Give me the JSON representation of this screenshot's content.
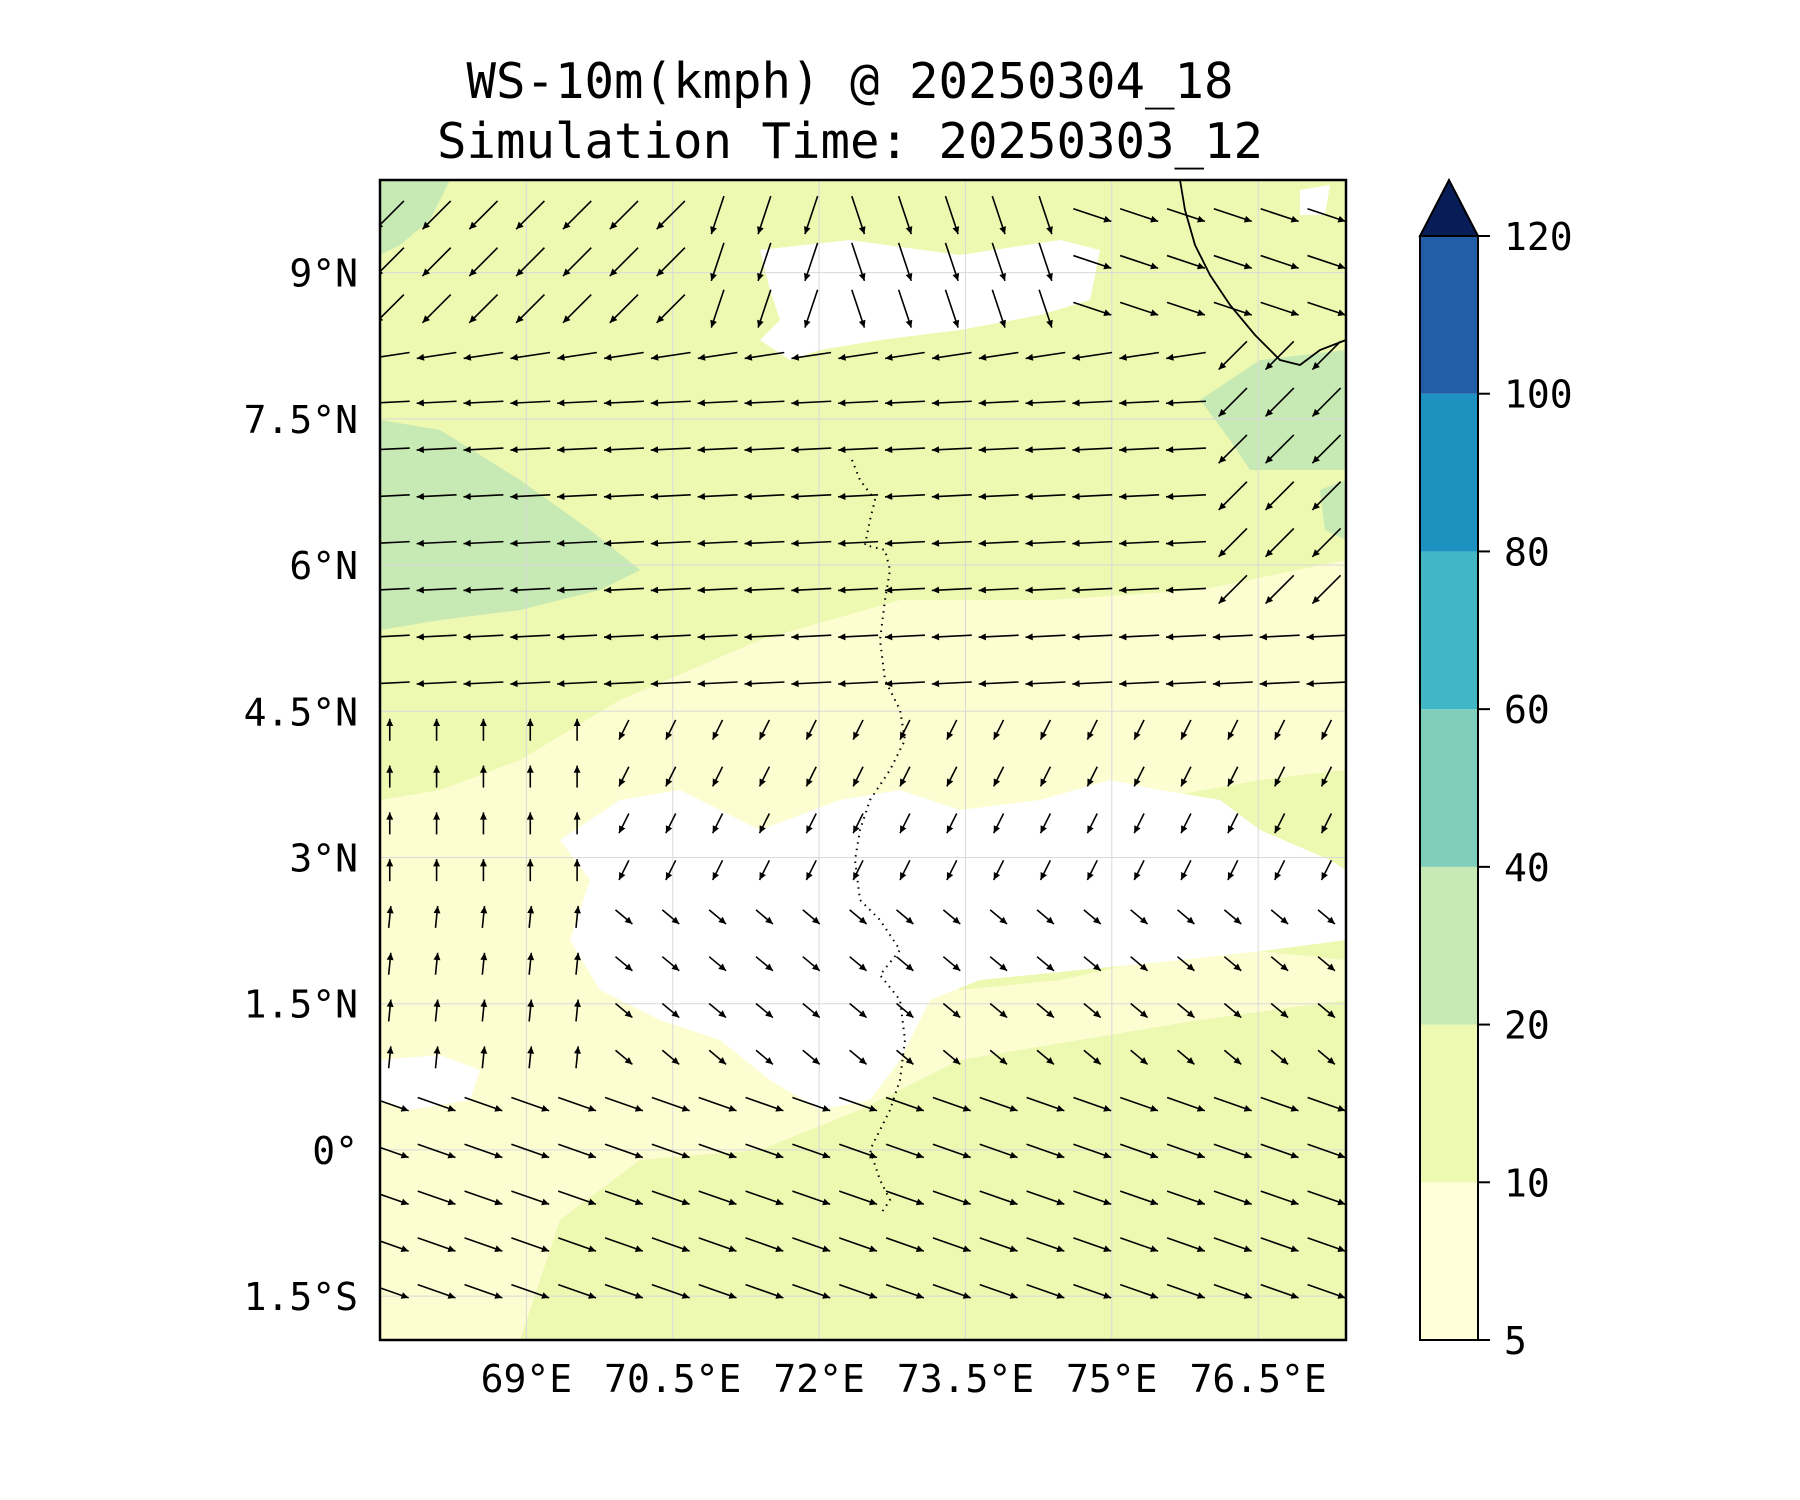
{
  "title": {
    "line1": "WS-10m(kmph) @ 20250304_18",
    "line2": "Simulation Time: 20250303_12"
  },
  "map": {
    "lon_range": [
      67.5,
      77.4
    ],
    "lat_range": [
      -1.95,
      9.95
    ],
    "x_ticks": [
      {
        "value": 69.0,
        "label": "69°E"
      },
      {
        "value": 70.5,
        "label": "70.5°E"
      },
      {
        "value": 72.0,
        "label": "72°E"
      },
      {
        "value": 73.5,
        "label": "73.5°E"
      },
      {
        "value": 75.0,
        "label": "75°E"
      },
      {
        "value": 76.5,
        "label": "76.5°E"
      }
    ],
    "y_ticks": [
      {
        "value": 9.0,
        "label": "9°N"
      },
      {
        "value": 7.5,
        "label": "7.5°N"
      },
      {
        "value": 6.0,
        "label": "6°N"
      },
      {
        "value": 4.5,
        "label": "4.5°N"
      },
      {
        "value": 3.0,
        "label": "3°N"
      },
      {
        "value": 1.5,
        "label": "1.5°N"
      },
      {
        "value": 0.0,
        "label": "0°"
      },
      {
        "value": -1.5,
        "label": "1.5°S"
      }
    ],
    "grid": true
  },
  "colorbar": {
    "levels": [
      5,
      10,
      20,
      40,
      60,
      80,
      100,
      120
    ],
    "labels": [
      "5",
      "10",
      "20",
      "40",
      "60",
      "80",
      "100",
      "120"
    ],
    "colors": [
      "#ffffd9",
      "#edf8b1",
      "#c7e9b4",
      "#7fcdbb",
      "#41b6c4",
      "#1d91c0",
      "#225ea8",
      "#0c2c84"
    ],
    "extend_color": "#081d58",
    "extend": "max"
  },
  "colors": {
    "background_low": "#ffffd9",
    "fill_10_20": "#edf8b1",
    "fill_20_40": "#c7e9b4",
    "calm": "#ffffff",
    "arrow": "#000000"
  }
}
